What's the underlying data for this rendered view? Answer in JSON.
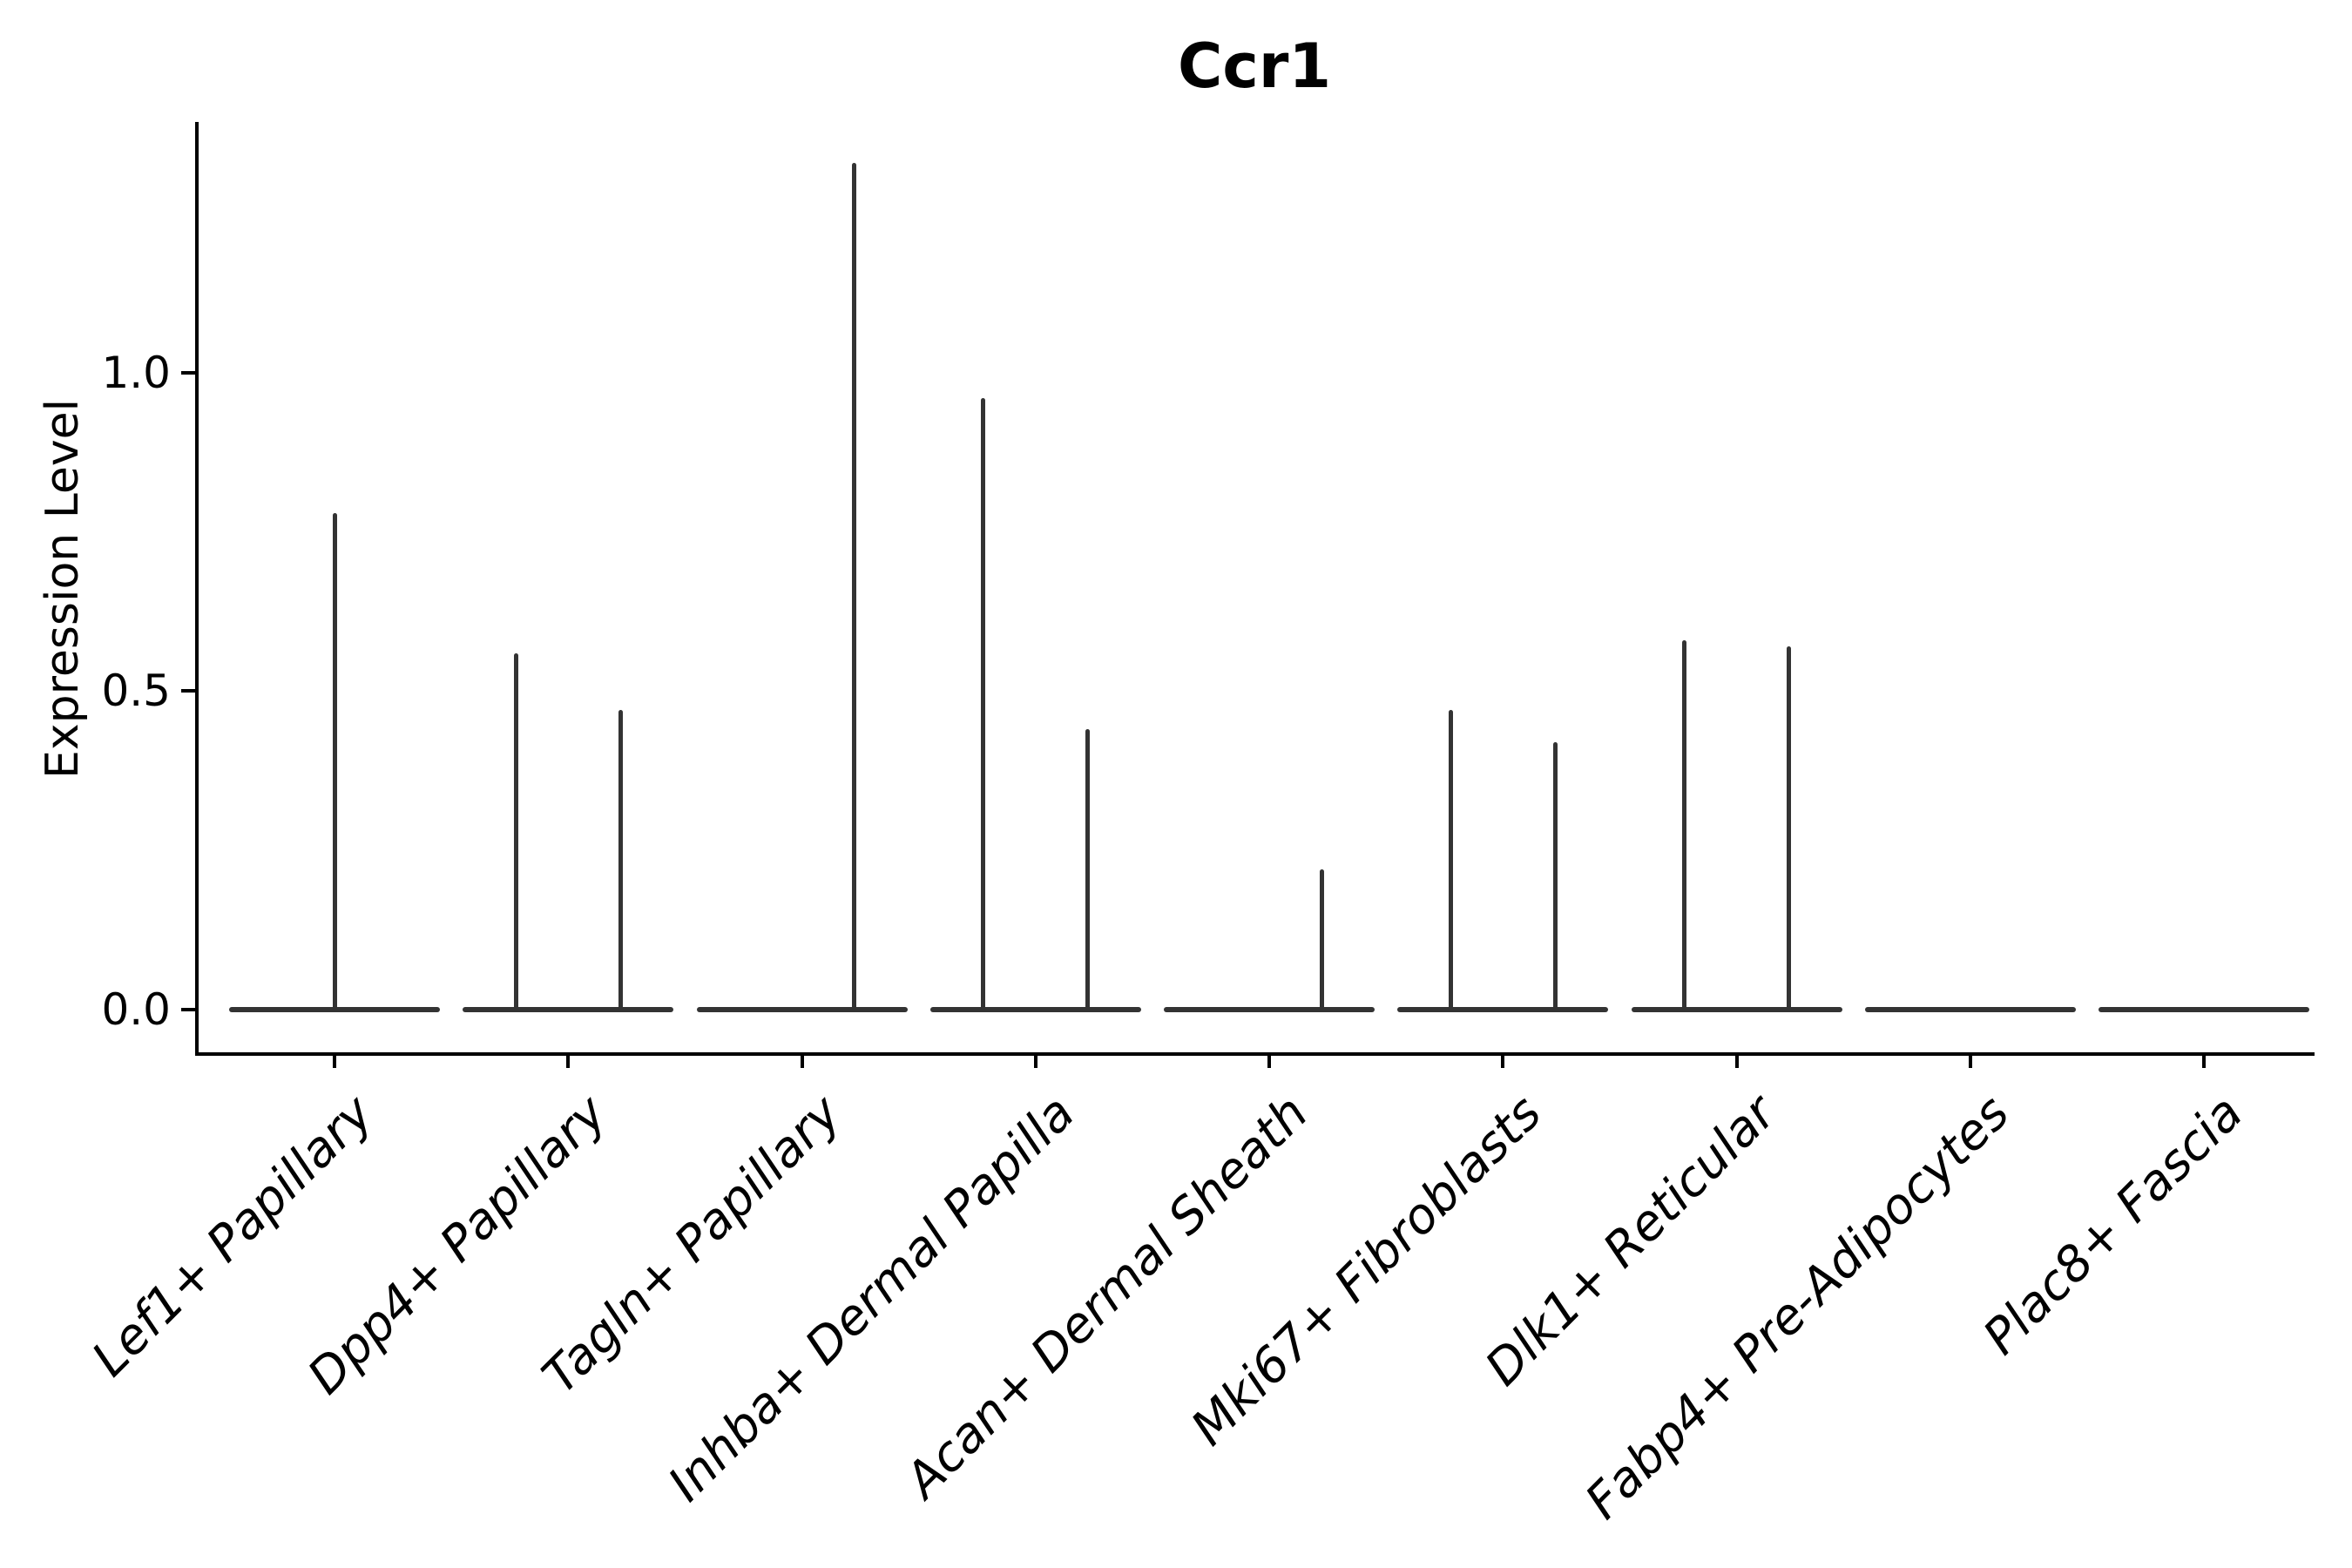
{
  "figure": {
    "title": "Ccr1",
    "ylabel": "Expression Level"
  },
  "chart_data": {
    "type": "violin",
    "title": "Ccr1",
    "xlabel": "",
    "ylabel": "Expression Level",
    "grid": false,
    "legend": false,
    "background_color": "#ffffff",
    "axis_color": "#000000",
    "violin_color": "#333333",
    "ylim": [
      -0.07,
      1.4
    ],
    "x_tick_label_style": "italic, rotated 45deg, right-anchored",
    "yticks": [
      {
        "value": 0.0,
        "label": "0.0"
      },
      {
        "value": 0.5,
        "label": "0.5"
      },
      {
        "value": 1.0,
        "label": "1.0"
      }
    ],
    "categories": [
      "Lef1+ Papillary",
      "Dpp4+ Papillary",
      "Tagln+ Papillary",
      "Inhba+ Dermal Papilla",
      "Acan+ Dermal Sheath",
      "Mki67+ Fibroblasts",
      "Dlk1+ Reticular",
      "Fabp4+ Pre-Adipocytes",
      "Plac8+ Fascia"
    ],
    "violins": [
      {
        "category": "Lef1+ Papillary",
        "zero_base": true,
        "spikes": [
          {
            "slot": "center",
            "peak": 0.78
          }
        ]
      },
      {
        "category": "Dpp4+ Papillary",
        "zero_base": true,
        "spikes": [
          {
            "slot": "left",
            "peak": 0.56
          },
          {
            "slot": "right",
            "peak": 0.47
          }
        ]
      },
      {
        "category": "Tagln+ Papillary",
        "zero_base": true,
        "spikes": [
          {
            "slot": "right",
            "peak": 1.33
          }
        ]
      },
      {
        "category": "Inhba+ Dermal Papilla",
        "zero_base": true,
        "spikes": [
          {
            "slot": "left",
            "peak": 0.96
          },
          {
            "slot": "right",
            "peak": 0.44
          }
        ]
      },
      {
        "category": "Acan+ Dermal Sheath",
        "zero_base": true,
        "spikes": [
          {
            "slot": "right",
            "peak": 0.22
          }
        ]
      },
      {
        "category": "Mki67+ Fibroblasts",
        "zero_base": true,
        "spikes": [
          {
            "slot": "left",
            "peak": 0.47
          },
          {
            "slot": "right",
            "peak": 0.42
          }
        ]
      },
      {
        "category": "Dlk1+ Reticular",
        "zero_base": true,
        "spikes": [
          {
            "slot": "left",
            "peak": 0.58
          },
          {
            "slot": "right",
            "peak": 0.57
          }
        ]
      },
      {
        "category": "Fabp4+ Pre-Adipocytes",
        "zero_base": true,
        "spikes": []
      },
      {
        "category": "Plac8+ Fascia",
        "zero_base": true,
        "spikes": []
      }
    ]
  }
}
